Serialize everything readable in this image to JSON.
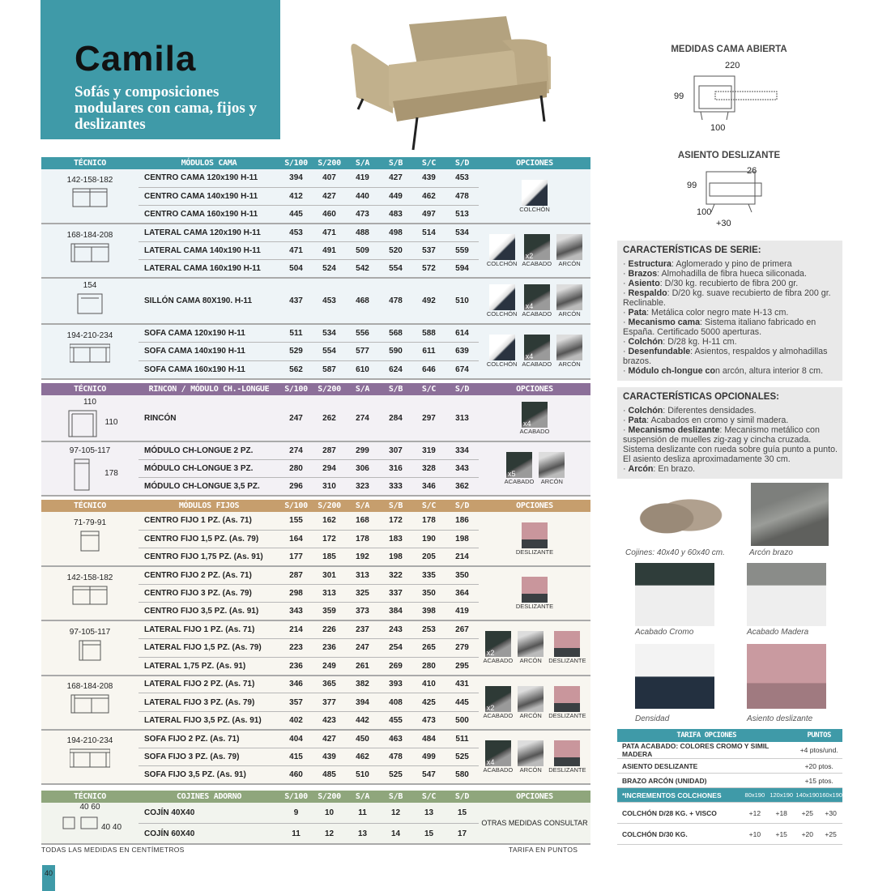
{
  "header": {
    "title": "Camila",
    "subtitle": "Sofás y composiciones modulares con cama, fijos y deslizantes"
  },
  "colors": {
    "teal": "#3f9aa8",
    "purple": "#8c6f99",
    "tan": "#c69e6d",
    "green": "#8fa67c"
  },
  "diagrams": {
    "cama_abierta": {
      "title": "MEDIDAS CAMA ABIERTA",
      "width": "220",
      "height": "99",
      "depth": "100"
    },
    "asiento_deslizante": {
      "title": "ASIENTO DESLIZANTE",
      "width": "26",
      "height": "99",
      "depth": "100",
      "extra": "+30"
    }
  },
  "columns": [
    "S/100",
    "S/200",
    "S/A",
    "S/B",
    "S/C",
    "S/D"
  ],
  "sections": [
    {
      "color": "#3f9aa8",
      "bg": "#eef4f7",
      "tecnico": "TÉCNICO",
      "modulos": "MÓDULOS CAMA",
      "opciones": "OPCIONES",
      "groups": [
        {
          "tec": "142-158-182",
          "shape": "centro2",
          "rows": [
            [
              "CENTRO CAMA 120x190  H-11",
              394,
              407,
              419,
              427,
              439,
              453
            ],
            [
              "CENTRO CAMA 140x190  H-11",
              412,
              427,
              440,
              449,
              462,
              478
            ],
            [
              "CENTRO CAMA 160x190  H-11",
              445,
              460,
              473,
              483,
              497,
              513
            ]
          ],
          "ops": [
            {
              "icon": "colchon",
              "label": "COLCHÓN"
            }
          ]
        },
        {
          "tec": "168-184-208",
          "shape": "lateral2",
          "rows": [
            [
              "LATERAL CAMA 120x190  H-11",
              453,
              471,
              488,
              498,
              514,
              534
            ],
            [
              "LATERAL CAMA 140x190  H-11",
              471,
              491,
              509,
              520,
              537,
              559
            ],
            [
              "LATERAL CAMA 160x190  H-11",
              504,
              524,
              542,
              554,
              572,
              594
            ]
          ],
          "ops": [
            {
              "icon": "colchon",
              "label": "COLCHÓN"
            },
            {
              "icon": "acabado",
              "label": "ACABADO",
              "qty": "x2"
            },
            {
              "icon": "arcon",
              "label": "ARCÓN"
            }
          ]
        },
        {
          "tec": "154",
          "shape": "sillon",
          "single": true,
          "rows": [
            [
              "SILLÓN CAMA 80X190. H-11",
              437,
              453,
              468,
              478,
              492,
              510
            ]
          ],
          "ops": [
            {
              "icon": "colchon",
              "label": "COLCHÓN"
            },
            {
              "icon": "acabado",
              "label": "ACABADO",
              "qty": "x4"
            },
            {
              "icon": "arcon",
              "label": "ARCÓN"
            }
          ]
        },
        {
          "tec": "194-210-234",
          "shape": "sofa2",
          "rows": [
            [
              "SOFA CAMA 120x190  H-11",
              511,
              534,
              556,
              568,
              588,
              614
            ],
            [
              "SOFA CAMA 140x190   H-11",
              529,
              554,
              577,
              590,
              611,
              639
            ],
            [
              "SOFA CAMA 160x190  H-11",
              562,
              587,
              610,
              624,
              646,
              674
            ]
          ],
          "ops": [
            {
              "icon": "colchon",
              "label": "COLCHÓN"
            },
            {
              "icon": "acabado",
              "label": "ACABADO",
              "qty": "x4"
            },
            {
              "icon": "arcon",
              "label": "ARCÓN"
            }
          ]
        }
      ]
    },
    {
      "color": "#8c6f99",
      "bg": "#f3f1f5",
      "tecnico": "TÉCNICO",
      "modulos": "RINCON / MÓDULO CH.-LONGUE",
      "opciones": "OPCIONES",
      "groups": [
        {
          "tec": "110",
          "tec2": "110",
          "shape": "rincon",
          "single": true,
          "rows": [
            [
              "RINCÓN",
              247,
              262,
              274,
              284,
              297,
              313
            ]
          ],
          "ops": [
            {
              "icon": "acabado",
              "label": "ACABADO",
              "qty": "x4"
            }
          ]
        },
        {
          "tec": "97-105-117",
          "tec2": "178",
          "shape": "chaise",
          "rows": [
            [
              "MÓDULO CH-LONGUE 2 PZ.",
              274,
              287,
              299,
              307,
              319,
              334
            ],
            [
              "MÓDULO CH-LONGUE 3 PZ.",
              280,
              294,
              306,
              316,
              328,
              343
            ],
            [
              "MÓDULO CH-LONGUE 3,5 PZ.",
              296,
              310,
              323,
              333,
              346,
              362
            ]
          ],
          "ops": [
            {
              "icon": "acabado",
              "label": "ACABADO",
              "qty": "x5"
            },
            {
              "icon": "arcon",
              "label": "ARCÓN"
            }
          ]
        }
      ]
    },
    {
      "color": "#c69e6d",
      "bg": "#f8f6f0",
      "tecnico": "TÉCNICO",
      "modulos": "MÓDULOS FIJOS",
      "opciones": "OPCIONES",
      "groups": [
        {
          "tec": "71-79-91",
          "shape": "centro1",
          "rows": [
            [
              "CENTRO FIJO 1 PZ. (As. 71)",
              155,
              162,
              168,
              172,
              178,
              186
            ],
            [
              "CENTRO FIJO 1,5 PZ. (As. 79)",
              164,
              172,
              178,
              183,
              190,
              198
            ],
            [
              "CENTRO FIJO 1,75  PZ. (As. 91)",
              177,
              185,
              192,
              198,
              205,
              214
            ]
          ],
          "ops": [
            {
              "icon": "deslizante",
              "label": "DESLIZANTE"
            }
          ]
        },
        {
          "tec": "142-158-182",
          "shape": "centro2",
          "rows": [
            [
              "CENTRO FIJO 2 PZ. (As. 71)",
              287,
              301,
              313,
              322,
              335,
              350
            ],
            [
              "CENTRO FIJO 3 PZ. (As. 79)",
              298,
              313,
              325,
              337,
              350,
              364
            ],
            [
              "CENTRO FIJO 3,5  PZ. (As. 91)",
              343,
              359,
              373,
              384,
              398,
              419
            ]
          ],
          "ops": [
            {
              "icon": "deslizante",
              "label": "DESLIZANTE"
            }
          ]
        },
        {
          "tec": "97-105-117",
          "shape": "lateral1",
          "rows": [
            [
              "LATERAL FIJO 1 PZ. (As. 71)",
              214,
              226,
              237,
              243,
              253,
              267
            ],
            [
              "LATERAL FIJO 1,5 PZ. (As. 79)",
              223,
              236,
              247,
              254,
              265,
              279
            ],
            [
              "LATERAL 1,75  PZ. (As. 91)",
              236,
              249,
              261,
              269,
              280,
              295
            ]
          ],
          "ops": [
            {
              "icon": "acabado",
              "label": "ACABADO",
              "qty": "x2"
            },
            {
              "icon": "arcon",
              "label": "ARCÓN"
            },
            {
              "icon": "deslizante",
              "label": "DESLIZANTE"
            }
          ]
        },
        {
          "tec": "168-184-208",
          "shape": "lateral2",
          "rows": [
            [
              "LATERAL FIJO 2 PZ. (As. 71)",
              346,
              365,
              382,
              393,
              410,
              431
            ],
            [
              "LATERAL FIJO 3 PZ. (As. 79)",
              357,
              377,
              394,
              408,
              425,
              445
            ],
            [
              "LATERAL FIJO 3,5  PZ. (As. 91)",
              402,
              423,
              442,
              455,
              473,
              500
            ]
          ],
          "ops": [
            {
              "icon": "acabado",
              "label": "ACABADO",
              "qty": "x2"
            },
            {
              "icon": "arcon",
              "label": "ARCÓN"
            },
            {
              "icon": "deslizante",
              "label": "DESLIZANTE"
            }
          ]
        },
        {
          "tec": "194-210-234",
          "shape": "sofa2",
          "rows": [
            [
              "SOFA FIJO 2 PZ. (As. 71)",
              404,
              427,
              450,
              463,
              484,
              511
            ],
            [
              "SOFA FIJO 3 PZ. (As. 79)",
              415,
              439,
              462,
              478,
              499,
              525
            ],
            [
              "SOFA FIJO  3,5 PZ. (As. 91)",
              460,
              485,
              510,
              525,
              547,
              580
            ]
          ],
          "ops": [
            {
              "icon": "acabado",
              "label": "ACABADO",
              "qty": "x4"
            },
            {
              "icon": "arcon",
              "label": "ARCÓN"
            },
            {
              "icon": "deslizante",
              "label": "DESLIZANTE"
            }
          ]
        }
      ]
    },
    {
      "color": "#8fa67c",
      "bg": "#f2f4ee",
      "tecnico": "TÉCNICO",
      "modulos": "COJINES ADORNO",
      "opciones": "OPCIONES",
      "groups": [
        {
          "tec": "40   60",
          "tec2": "40   40",
          "shape": "cojines",
          "rows": [
            [
              "COJÍN 40X40",
              9,
              10,
              11,
              12,
              13,
              15
            ],
            [
              "COJÍN 60X40",
              11,
              12,
              13,
              14,
              15,
              17
            ]
          ],
          "optext": "OTRAS MEDIDAS CONSULTAR"
        }
      ]
    }
  ],
  "serie": {
    "title": "CARACTERÍSTICAS DE SERIE:",
    "items": [
      {
        "k": "Estructura",
        "v": ": Aglomerado y pino de primera"
      },
      {
        "k": "Brazos",
        "v": ": Almohadilla de fibra hueca siliconada."
      },
      {
        "k": "Asiento",
        "v": ": D/30 kg. recubierto de fibra 200 gr."
      },
      {
        "k": "Respaldo",
        "v": ": D/20 kg. suave recubierto de fibra 200 gr. Reclinable."
      },
      {
        "k": "Pata",
        "v": ": Metálica color negro mate H-13 cm."
      },
      {
        "k": "Mecanismo cama",
        "v": ": Sistema italiano fabricado en España. Certificado 5000 aperturas."
      },
      {
        "k": "Colchón",
        "v": ": D/28 kg. H-11 cm."
      },
      {
        "k": "Desenfundable",
        "v": ": Asientos, respaldos y almohadillas brazos."
      },
      {
        "k": "Módulo ch-longue co",
        "v": "n arcón, altura interior 8 cm."
      }
    ]
  },
  "opcionales": {
    "title": "CARACTERÍSTICAS OPCIONALES:",
    "items": [
      {
        "k": "Colchón",
        "v": ": Diferentes densidades."
      },
      {
        "k": "Pata",
        "v": ": Acabados en cromo y simil madera."
      },
      {
        "k": "Mecanismo deslizante",
        "v": ": Mecanismo metálico con suspensión de muelles zig-zag y cincha cruzada. Sistema deslizante con rueda sobre guía punto a punto. El asiento desliza aproximadamente 30 cm."
      },
      {
        "k": "Arcón",
        "v": ": En brazo."
      }
    ]
  },
  "photos": [
    "Cojines: 40x40 y 60x40 cm.",
    "Arcón brazo",
    "Acabado Cromo",
    "Acabado Madera",
    "Densidad",
    "Asiento deslizante"
  ],
  "tarifa": {
    "h1": "TARIFA OPCIONES",
    "h2": "PUNTOS",
    "rows": [
      [
        "PATA ACABADO: COLORES CROMO Y SIMIL MADERA",
        "+4 ptos/und."
      ],
      [
        "ASIENTO DESLIZANTE",
        "+20 ptos."
      ],
      [
        "BRAZO ARCÓN (UNIDAD)",
        "+15 ptos."
      ]
    ],
    "inc_header": [
      "*INCREMENTOS COLCHONES",
      "80x190",
      "120x190",
      "140x190",
      "160x190"
    ],
    "inc_rows": [
      [
        "COLCHÓN D/28 KG. + VISCO",
        "+12",
        "+18",
        "+25",
        "+30"
      ],
      [
        "COLCHÓN D/30 KG.",
        "+10",
        "+15",
        "+20",
        "+25"
      ]
    ]
  },
  "footer": {
    "left": "TODAS LAS MEDIDAS EN CENTÍMETROS",
    "right": "TARIFA EN PUNTOS",
    "page": "40"
  }
}
